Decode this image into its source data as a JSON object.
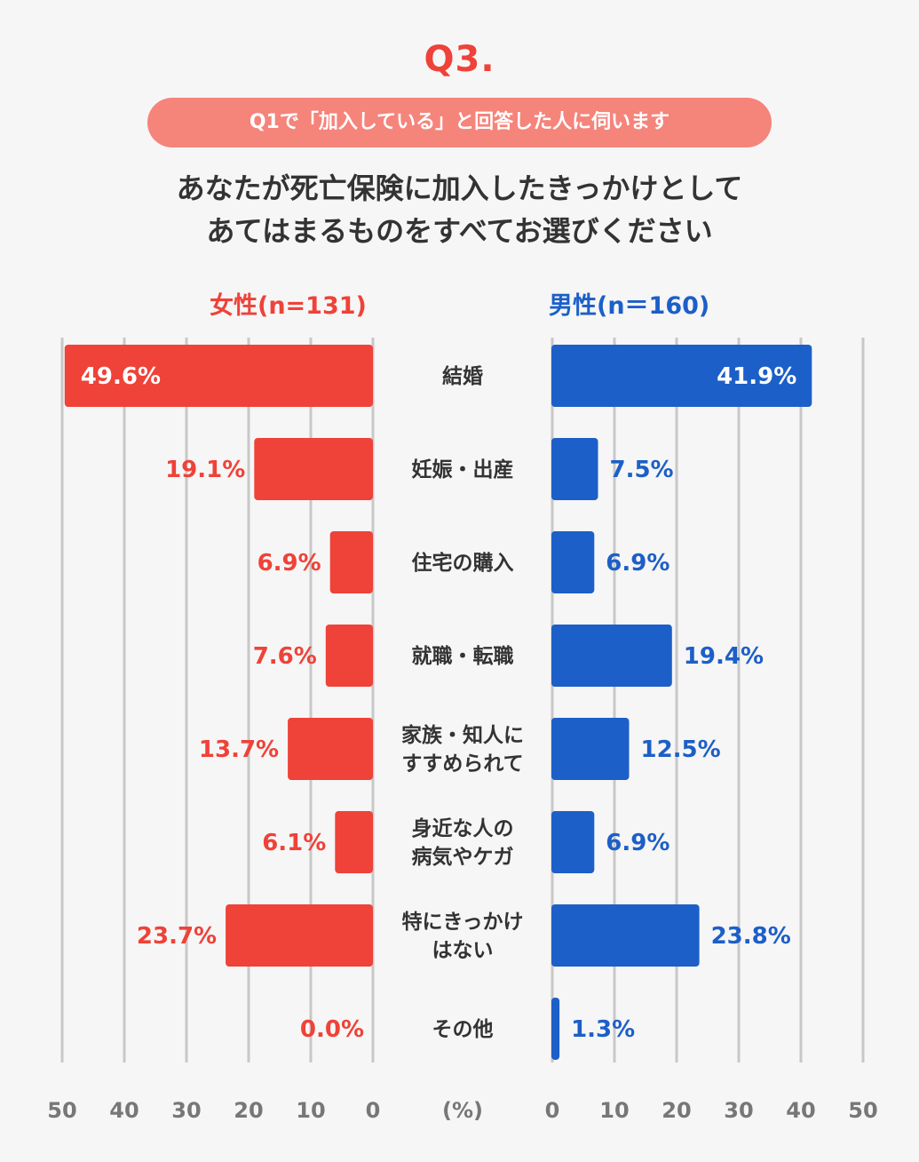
{
  "question_number": "Q3.",
  "condition": "Q1で「加入している」と回答した人に伺います",
  "question_lines": [
    "あなたが死亡保険に加入したきっかけとして",
    "あてはまるものをすべてお選びください"
  ],
  "colors": {
    "female": "#ef4238",
    "male": "#1c5fc8",
    "grid": "#c8c8c8",
    "tick": "#777777",
    "label": "#333333"
  },
  "chart_data": {
    "type": "bar",
    "orientation": "horizontal-butterfly",
    "unit_label": "(%)",
    "xlim": [
      0,
      50
    ],
    "ticks": [
      0,
      10,
      20,
      30,
      40,
      50
    ],
    "categories": [
      [
        "結婚"
      ],
      [
        "妊娠・出産"
      ],
      [
        "住宅の購入"
      ],
      [
        "就職・転職"
      ],
      [
        "家族・知人に",
        "すすめられて"
      ],
      [
        "身近な人の",
        "病気やケガ"
      ],
      [
        "特にきっかけ",
        "はない"
      ],
      [
        "その他"
      ]
    ],
    "series": [
      {
        "name": "女性(n=131)",
        "side": "left",
        "values": [
          49.6,
          19.1,
          6.9,
          7.6,
          13.7,
          6.1,
          23.7,
          0.0
        ],
        "labels": [
          "49.6%",
          "19.1%",
          "6.9%",
          "7.6%",
          "13.7%",
          "6.1%",
          "23.7%",
          "0.0%"
        ]
      },
      {
        "name": "男性(n＝160)",
        "side": "right",
        "values": [
          41.9,
          7.5,
          6.9,
          19.4,
          12.5,
          6.9,
          23.8,
          1.3
        ],
        "labels": [
          "41.9%",
          "7.5%",
          "6.9%",
          "19.4%",
          "12.5%",
          "6.9%",
          "23.8%",
          "1.3%"
        ]
      }
    ]
  }
}
